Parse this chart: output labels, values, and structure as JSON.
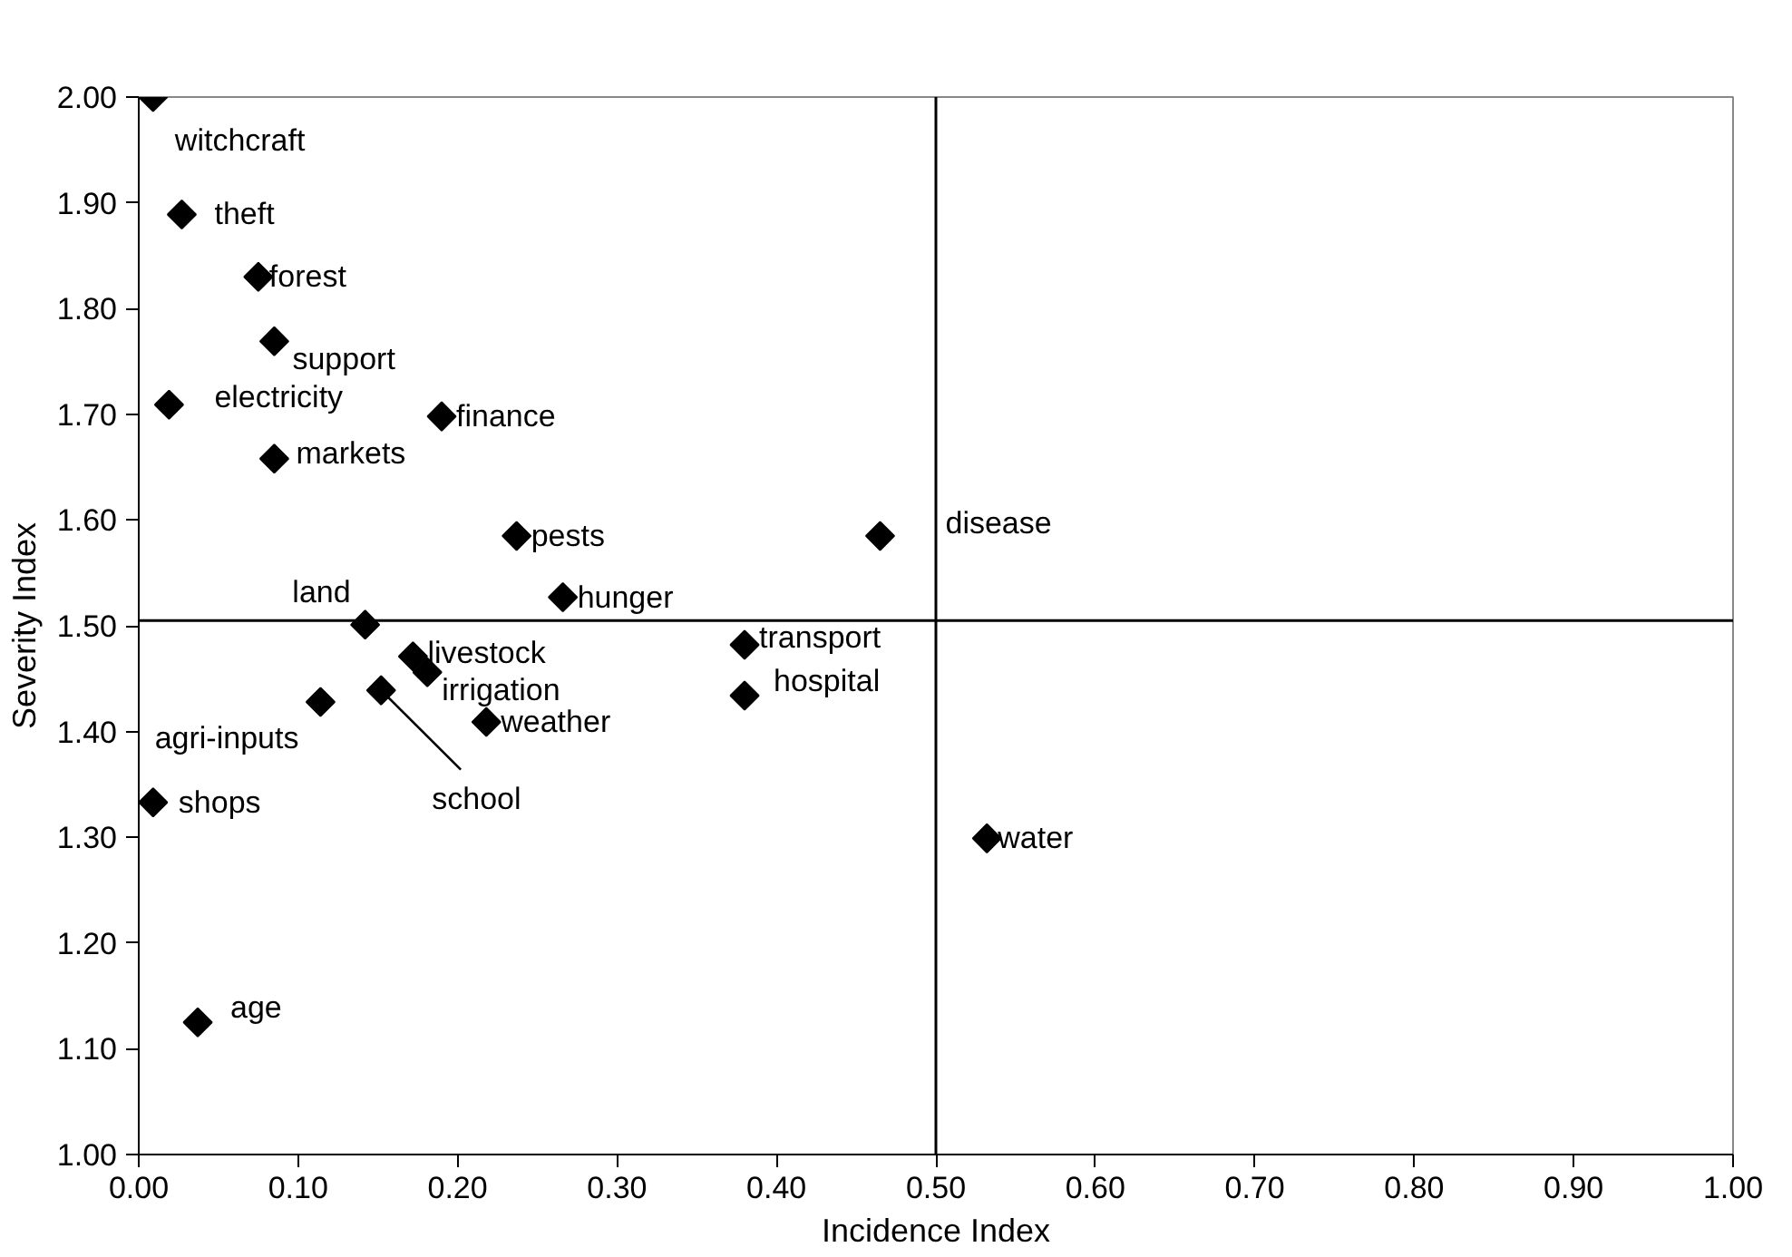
{
  "chart_data": {
    "type": "scatter",
    "xlabel": "Incidence Index",
    "ylabel": "Severity Index",
    "xlim": [
      0,
      1
    ],
    "ylim": [
      1,
      2
    ],
    "xticks": [
      {
        "value": 0,
        "label": "0.00"
      },
      {
        "value": 0.1,
        "label": "0.10"
      },
      {
        "value": 0.2,
        "label": "0.20"
      },
      {
        "value": 0.3,
        "label": "0.30"
      },
      {
        "value": 0.4,
        "label": "0.40"
      },
      {
        "value": 0.5,
        "label": "0.50"
      },
      {
        "value": 0.6,
        "label": "0.60"
      },
      {
        "value": 0.7,
        "label": "0.70"
      },
      {
        "value": 0.8,
        "label": "0.80"
      },
      {
        "value": 0.9,
        "label": "0.90"
      },
      {
        "value": 1,
        "label": "1.00"
      }
    ],
    "yticks": [
      {
        "value": 1,
        "label": "1.00"
      },
      {
        "value": 1.1,
        "label": "1.10"
      },
      {
        "value": 1.2,
        "label": "1.20"
      },
      {
        "value": 1.3,
        "label": "1.30"
      },
      {
        "value": 1.4,
        "label": "1.40"
      },
      {
        "value": 1.5,
        "label": "1.50"
      },
      {
        "value": 1.6,
        "label": "1.60"
      },
      {
        "value": 1.7,
        "label": "1.70"
      },
      {
        "value": 1.8,
        "label": "1.80"
      },
      {
        "value": 1.9,
        "label": "1.90"
      },
      {
        "value": 2,
        "label": "2.00"
      }
    ],
    "grid": false,
    "marker": "diamond",
    "series": [
      {
        "color": "#000000",
        "x": [
          0.009,
          0.027,
          0.075,
          0.085,
          0.019,
          0.19,
          0.085,
          0.237,
          0.266,
          0.142,
          0.172,
          0.181,
          0.114,
          0.152,
          0.218,
          0.009,
          0.037,
          0.465,
          0.38,
          0.38,
          0.532
        ],
        "values": [
          2.0,
          1.889,
          1.83,
          1.769,
          1.709,
          1.698,
          1.658,
          1.585,
          1.527,
          1.501,
          1.471,
          1.456,
          1.428,
          1.439,
          1.409,
          1.333,
          1.125,
          1.585,
          1.482,
          1.434,
          1.299
        ]
      }
    ],
    "annotations": [
      {
        "text": "witchcraft",
        "x": 0.009,
        "y": 2.0
      },
      {
        "text": "theft",
        "x": 0.027,
        "y": 1.889
      },
      {
        "text": "forest",
        "x": 0.075,
        "y": 1.83
      },
      {
        "text": "support",
        "x": 0.085,
        "y": 1.769
      },
      {
        "text": "electricity",
        "x": 0.019,
        "y": 1.709
      },
      {
        "text": "finance",
        "x": 0.19,
        "y": 1.698
      },
      {
        "text": "markets",
        "x": 0.085,
        "y": 1.658
      },
      {
        "text": "pests",
        "x": 0.237,
        "y": 1.585
      },
      {
        "text": "hunger",
        "x": 0.266,
        "y": 1.527
      },
      {
        "text": "land",
        "x": 0.142,
        "y": 1.501
      },
      {
        "text": "livestock",
        "x": 0.172,
        "y": 1.471
      },
      {
        "text": "irrigation",
        "x": 0.181,
        "y": 1.456
      },
      {
        "text": "agri-inputs",
        "x": 0.114,
        "y": 1.428
      },
      {
        "text": "school",
        "x": 0.152,
        "y": 1.439
      },
      {
        "text": "weather",
        "x": 0.218,
        "y": 1.409
      },
      {
        "text": "shops",
        "x": 0.009,
        "y": 1.333
      },
      {
        "text": "age",
        "x": 0.037,
        "y": 1.125
      },
      {
        "text": "disease",
        "x": 0.465,
        "y": 1.585
      },
      {
        "text": "transport",
        "x": 0.38,
        "y": 1.482
      },
      {
        "text": "hospital",
        "x": 0.38,
        "y": 1.434
      },
      {
        "text": "water",
        "x": 0.532,
        "y": 1.299
      }
    ],
    "ref_lines": [
      {
        "axis": "x",
        "value": 0.5,
        "color": "#000000"
      },
      {
        "axis": "y",
        "value": 1.505,
        "color": "#000000"
      }
    ]
  }
}
